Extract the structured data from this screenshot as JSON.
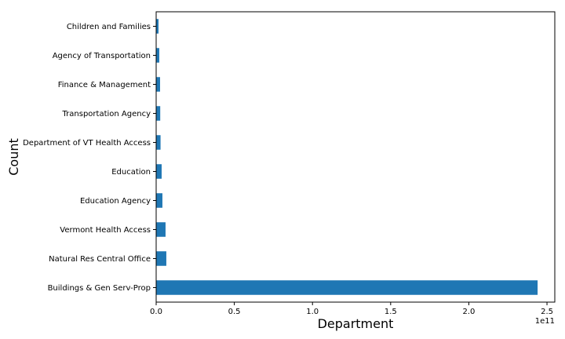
{
  "chart_data": {
    "type": "bar",
    "orientation": "horizontal",
    "categories": [
      "Buildings & Gen Serv-Prop",
      "Natural Res Central Office",
      "Vermont Health Access",
      "Education Agency",
      "Education",
      "Department of VT Health Access",
      "Transportation Agency",
      "Finance & Management",
      "Agency of Transportation",
      "Children and Families"
    ],
    "values": [
      244000000000,
      6500000000,
      6000000000,
      4000000000,
      3500000000,
      2800000000,
      2600000000,
      2500000000,
      2000000000,
      1500000000
    ],
    "xlabel": "Department",
    "ylabel": "Count",
    "x_scale_label": "1e11",
    "xlim": [
      0,
      255000000000
    ],
    "x_ticks": [
      0,
      50000000000,
      100000000000,
      150000000000,
      200000000000,
      250000000000
    ],
    "x_tick_labels": [
      "0.0",
      "0.5",
      "1.0",
      "1.5",
      "2.0",
      "2.5"
    ],
    "bar_color": "#1f77b4",
    "grid": false,
    "legend": "none"
  }
}
